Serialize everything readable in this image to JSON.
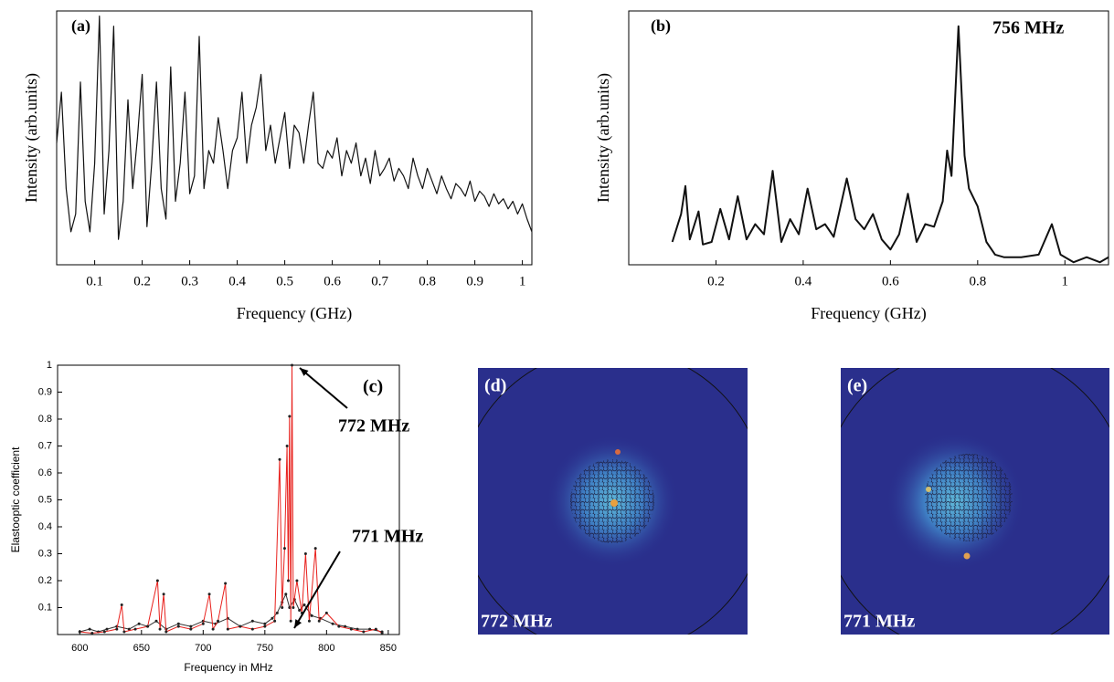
{
  "chart_data": [
    {
      "type": "line",
      "label": "(a)",
      "xlabel": "Frequency (GHz)",
      "ylabel": "Intensity (arb.units)",
      "xlim": [
        0.02,
        1.02
      ],
      "ylim": [
        0,
        10
      ],
      "xticks": [
        0.1,
        0.2,
        0.3,
        0.4,
        0.5,
        0.6,
        0.7,
        0.8,
        0.9,
        1
      ],
      "color": "#111111",
      "x": [
        0.02,
        0.03,
        0.04,
        0.05,
        0.06,
        0.07,
        0.08,
        0.09,
        0.1,
        0.11,
        0.12,
        0.13,
        0.14,
        0.15,
        0.16,
        0.17,
        0.18,
        0.19,
        0.2,
        0.21,
        0.22,
        0.23,
        0.24,
        0.25,
        0.26,
        0.27,
        0.28,
        0.29,
        0.3,
        0.31,
        0.32,
        0.33,
        0.34,
        0.35,
        0.36,
        0.37,
        0.38,
        0.39,
        0.4,
        0.41,
        0.42,
        0.43,
        0.44,
        0.45,
        0.46,
        0.47,
        0.48,
        0.49,
        0.5,
        0.51,
        0.52,
        0.53,
        0.54,
        0.55,
        0.56,
        0.57,
        0.58,
        0.59,
        0.6,
        0.61,
        0.62,
        0.63,
        0.64,
        0.65,
        0.66,
        0.67,
        0.68,
        0.69,
        0.7,
        0.71,
        0.72,
        0.73,
        0.74,
        0.75,
        0.76,
        0.77,
        0.78,
        0.79,
        0.8,
        0.81,
        0.82,
        0.83,
        0.84,
        0.85,
        0.86,
        0.87,
        0.88,
        0.89,
        0.9,
        0.91,
        0.92,
        0.93,
        0.94,
        0.95,
        0.96,
        0.97,
        0.98,
        0.99,
        1.0,
        1.01,
        1.02
      ],
      "values": [
        4.8,
        6.8,
        3.0,
        1.3,
        2.0,
        7.2,
        2.5,
        1.3,
        4.0,
        9.8,
        2.0,
        4.5,
        9.4,
        1.0,
        2.5,
        6.5,
        3.0,
        5.0,
        7.5,
        1.5,
        4.0,
        7.2,
        3.0,
        1.8,
        7.8,
        2.5,
        4.0,
        6.8,
        2.8,
        3.5,
        9.0,
        3.0,
        4.5,
        4.0,
        5.8,
        4.5,
        3.0,
        4.5,
        5.0,
        6.8,
        4.0,
        5.5,
        6.2,
        7.5,
        4.5,
        5.5,
        4.0,
        5.0,
        6.0,
        3.8,
        5.5,
        5.2,
        4.0,
        5.5,
        6.8,
        4.0,
        3.8,
        4.5,
        4.2,
        5.0,
        3.5,
        4.5,
        4.0,
        4.8,
        3.5,
        4.2,
        3.2,
        4.5,
        3.5,
        3.8,
        4.2,
        3.3,
        3.8,
        3.5,
        3.0,
        4.2,
        3.5,
        3.0,
        3.8,
        3.3,
        2.8,
        3.5,
        3.0,
        2.6,
        3.2,
        3.0,
        2.7,
        3.3,
        2.5,
        2.9,
        2.7,
        2.3,
        2.8,
        2.4,
        2.6,
        2.2,
        2.5,
        2.0,
        2.4,
        1.8,
        1.3
      ]
    },
    {
      "type": "line",
      "label": "(b)",
      "xlabel": "Frequency (GHz)",
      "ylabel": "Intensity (arb.units)",
      "annotation": "756 MHz",
      "xlim": [
        0,
        1.1
      ],
      "ylim": [
        0,
        10
      ],
      "xticks": [
        0.2,
        0.4,
        0.6,
        0.8,
        1
      ],
      "color": "#111111",
      "x": [
        0.1,
        0.12,
        0.13,
        0.14,
        0.16,
        0.17,
        0.19,
        0.21,
        0.23,
        0.25,
        0.27,
        0.29,
        0.31,
        0.33,
        0.35,
        0.37,
        0.39,
        0.41,
        0.43,
        0.45,
        0.47,
        0.5,
        0.52,
        0.54,
        0.56,
        0.58,
        0.6,
        0.62,
        0.64,
        0.66,
        0.68,
        0.7,
        0.72,
        0.73,
        0.74,
        0.756,
        0.77,
        0.78,
        0.8,
        0.82,
        0.84,
        0.86,
        0.9,
        0.94,
        0.97,
        0.99,
        1.02,
        1.05,
        1.08,
        1.1
      ],
      "values": [
        0.9,
        2.0,
        3.1,
        1.0,
        2.1,
        0.8,
        0.9,
        2.2,
        1.0,
        2.7,
        1.0,
        1.6,
        1.2,
        3.7,
        0.9,
        1.8,
        1.2,
        3.0,
        1.4,
        1.6,
        1.1,
        3.4,
        1.8,
        1.4,
        2.0,
        1.0,
        0.6,
        1.2,
        2.8,
        0.9,
        1.6,
        1.5,
        2.5,
        4.5,
        3.5,
        9.4,
        4.3,
        3.0,
        2.3,
        0.9,
        0.4,
        0.3,
        0.3,
        0.4,
        1.6,
        0.4,
        0.1,
        0.3,
        0.1,
        0.3
      ]
    },
    {
      "type": "line",
      "label": "(c)",
      "xlabel": "Frequency in MHz",
      "ylabel": "Elastooptic coefficient",
      "annotations": [
        "772 MHz",
        "771 MHz"
      ],
      "xlim": [
        582,
        859
      ],
      "ylim": [
        0,
        1
      ],
      "xticks": [
        600,
        650,
        700,
        750,
        800,
        850
      ],
      "yticks": [
        0.1,
        0.2,
        0.3,
        0.4,
        0.5,
        0.6,
        0.7,
        0.8,
        0.9,
        1
      ],
      "series": [
        {
          "color": "#333333",
          "marker_color": "#222222",
          "x": [
            600,
            608,
            615,
            622,
            630,
            640,
            648,
            655,
            662,
            670,
            680,
            690,
            700,
            710,
            720,
            730,
            740,
            750,
            756,
            760,
            764,
            767,
            770,
            774,
            778,
            782,
            788,
            795,
            805,
            815,
            825,
            835,
            845
          ],
          "values": [
            0.01,
            0.02,
            0.01,
            0.02,
            0.03,
            0.02,
            0.04,
            0.03,
            0.05,
            0.02,
            0.04,
            0.03,
            0.05,
            0.04,
            0.06,
            0.03,
            0.05,
            0.04,
            0.06,
            0.08,
            0.12,
            0.15,
            0.1,
            0.13,
            0.09,
            0.11,
            0.07,
            0.06,
            0.04,
            0.03,
            0.02,
            0.02,
            0.01
          ]
        },
        {
          "color": "#e8201c",
          "marker_color": "#222222",
          "x": [
            600,
            610,
            620,
            630,
            634,
            636,
            645,
            655,
            663,
            665,
            668,
            670,
            680,
            690,
            700,
            705,
            708,
            712,
            718,
            720,
            730,
            740,
            750,
            758,
            762,
            764,
            766,
            768,
            769,
            770,
            771,
            772,
            773,
            776,
            780,
            783,
            786,
            791,
            794,
            800,
            810,
            820,
            830,
            840,
            845
          ],
          "values": [
            0.01,
            0.005,
            0.01,
            0.02,
            0.11,
            0.01,
            0.02,
            0.03,
            0.2,
            0.02,
            0.15,
            0.01,
            0.03,
            0.02,
            0.04,
            0.15,
            0.02,
            0.05,
            0.19,
            0.02,
            0.03,
            0.02,
            0.03,
            0.05,
            0.65,
            0.1,
            0.32,
            0.7,
            0.2,
            0.81,
            0.05,
            1,
            0.1,
            0.2,
            0.08,
            0.3,
            0.05,
            0.32,
            0.05,
            0.08,
            0.03,
            0.02,
            0.01,
            0.02,
            0.005
          ]
        }
      ]
    }
  ],
  "images": [
    {
      "label": "(d)",
      "caption": "772 MHz"
    },
    {
      "label": "(e)",
      "caption": "771 MHz"
    }
  ]
}
